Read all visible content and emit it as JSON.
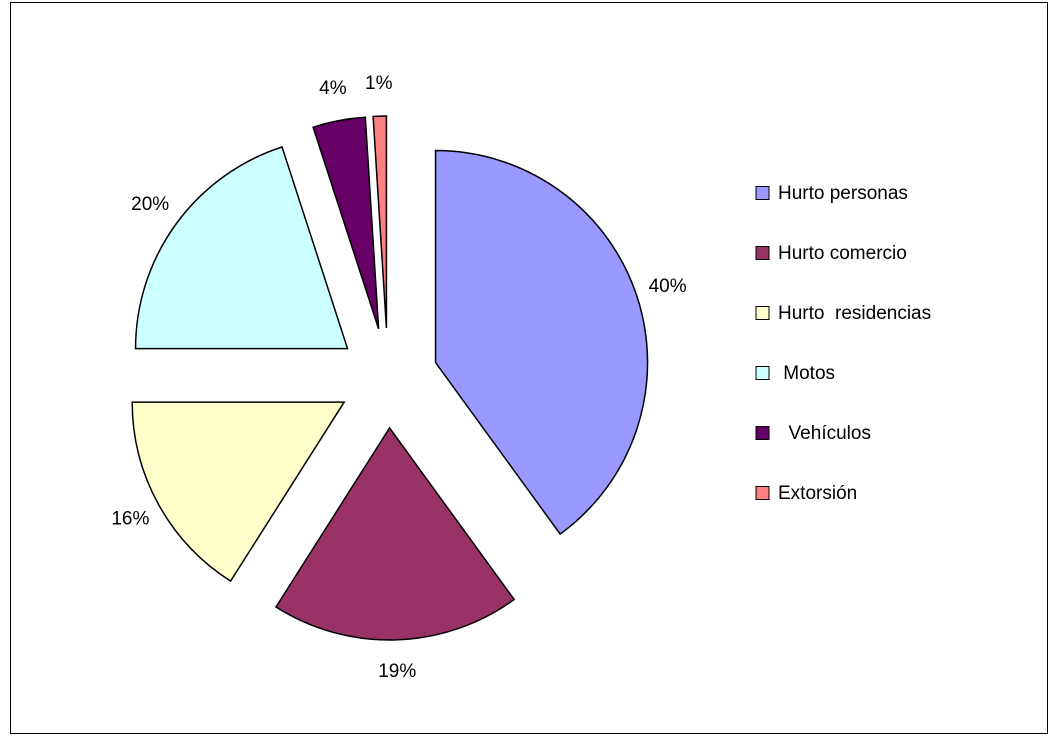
{
  "chart_data": {
    "type": "pie",
    "categories": [
      "Hurto personas",
      "Hurto comercio",
      "Hurto  residencias",
      " Motos",
      "  Vehículos",
      "Extorsión"
    ],
    "values": [
      40,
      19,
      16,
      20,
      4,
      1
    ],
    "value_labels": [
      "40%",
      "19%",
      "16%",
      "20%",
      "4%",
      "1%"
    ],
    "colors": [
      "#9999ff",
      "#993366",
      "#ffffcc",
      "#ccffff",
      "#660066",
      "#ff8080"
    ],
    "legend": "right"
  }
}
